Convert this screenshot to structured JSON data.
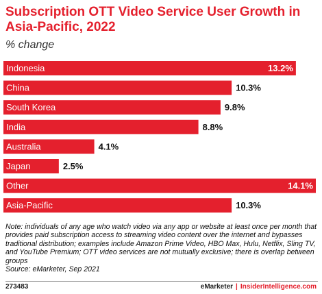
{
  "chart_data": {
    "type": "bar",
    "orientation": "horizontal",
    "title": "Subscription OTT Video Service User Growth in Asia-Pacific, 2022",
    "subtitle": "% change",
    "categories": [
      "Indonesia",
      "China",
      "South Korea",
      "India",
      "Australia",
      "Japan",
      "Other",
      "Asia-Pacific"
    ],
    "values": [
      13.2,
      10.3,
      9.8,
      8.8,
      4.1,
      2.5,
      14.1,
      10.3
    ],
    "value_labels": [
      "13.2%",
      "10.3%",
      "9.8%",
      "8.8%",
      "4.1%",
      "2.5%",
      "14.1%",
      "10.3%"
    ],
    "xlim": [
      0,
      14.1
    ],
    "grid": false,
    "bar_color": "#e4202d",
    "label_color": "#ffffff",
    "value_label_color": "#111111"
  },
  "note": "Note: individuals of any age who watch video via any app or website at least once per month that provides paid subscription access to streaming video content over the internet and bypasses traditional distribution; examples include Amazon Prime Video, HBO Max, Hulu, Netflix, Sling TV, and YouTube Premium; OTT video services are not mutually exclusive; there is overlap between groups",
  "source": "Source: eMarketer, Sep 2021",
  "footer": {
    "chart_id": "273483",
    "brand": "eMarketer",
    "separator": "|",
    "site": "InsiderIntelligence.com"
  }
}
